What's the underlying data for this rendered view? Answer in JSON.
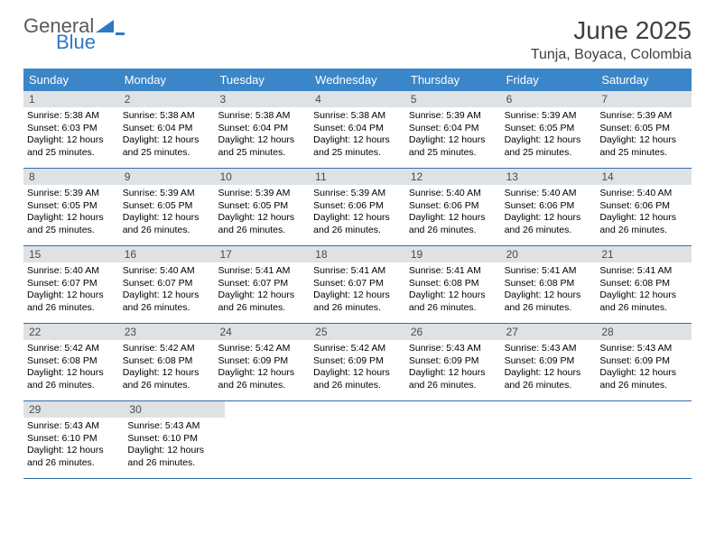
{
  "logo": {
    "text_general": "General",
    "text_blue": "Blue"
  },
  "header": {
    "title": "June 2025",
    "location": "Tunja, Boyaca, Colombia"
  },
  "weekdays": [
    "Sunday",
    "Monday",
    "Tuesday",
    "Wednesday",
    "Thursday",
    "Friday",
    "Saturday"
  ],
  "colors": {
    "header_bg": "#3b86c8",
    "header_text": "#ffffff",
    "daynum_bg": "#dfe2e5",
    "rule": "#2f6da8",
    "logo_gray": "#5a5a5a",
    "logo_blue": "#2f78c4"
  },
  "weeks": [
    [
      {
        "daynum": "1",
        "sunrise": "Sunrise: 5:38 AM",
        "sunset": "Sunset: 6:03 PM",
        "daylight1": "Daylight: 12 hours",
        "daylight2": "and 25 minutes."
      },
      {
        "daynum": "2",
        "sunrise": "Sunrise: 5:38 AM",
        "sunset": "Sunset: 6:04 PM",
        "daylight1": "Daylight: 12 hours",
        "daylight2": "and 25 minutes."
      },
      {
        "daynum": "3",
        "sunrise": "Sunrise: 5:38 AM",
        "sunset": "Sunset: 6:04 PM",
        "daylight1": "Daylight: 12 hours",
        "daylight2": "and 25 minutes."
      },
      {
        "daynum": "4",
        "sunrise": "Sunrise: 5:38 AM",
        "sunset": "Sunset: 6:04 PM",
        "daylight1": "Daylight: 12 hours",
        "daylight2": "and 25 minutes."
      },
      {
        "daynum": "5",
        "sunrise": "Sunrise: 5:39 AM",
        "sunset": "Sunset: 6:04 PM",
        "daylight1": "Daylight: 12 hours",
        "daylight2": "and 25 minutes."
      },
      {
        "daynum": "6",
        "sunrise": "Sunrise: 5:39 AM",
        "sunset": "Sunset: 6:05 PM",
        "daylight1": "Daylight: 12 hours",
        "daylight2": "and 25 minutes."
      },
      {
        "daynum": "7",
        "sunrise": "Sunrise: 5:39 AM",
        "sunset": "Sunset: 6:05 PM",
        "daylight1": "Daylight: 12 hours",
        "daylight2": "and 25 minutes."
      }
    ],
    [
      {
        "daynum": "8",
        "sunrise": "Sunrise: 5:39 AM",
        "sunset": "Sunset: 6:05 PM",
        "daylight1": "Daylight: 12 hours",
        "daylight2": "and 25 minutes."
      },
      {
        "daynum": "9",
        "sunrise": "Sunrise: 5:39 AM",
        "sunset": "Sunset: 6:05 PM",
        "daylight1": "Daylight: 12 hours",
        "daylight2": "and 26 minutes."
      },
      {
        "daynum": "10",
        "sunrise": "Sunrise: 5:39 AM",
        "sunset": "Sunset: 6:05 PM",
        "daylight1": "Daylight: 12 hours",
        "daylight2": "and 26 minutes."
      },
      {
        "daynum": "11",
        "sunrise": "Sunrise: 5:39 AM",
        "sunset": "Sunset: 6:06 PM",
        "daylight1": "Daylight: 12 hours",
        "daylight2": "and 26 minutes."
      },
      {
        "daynum": "12",
        "sunrise": "Sunrise: 5:40 AM",
        "sunset": "Sunset: 6:06 PM",
        "daylight1": "Daylight: 12 hours",
        "daylight2": "and 26 minutes."
      },
      {
        "daynum": "13",
        "sunrise": "Sunrise: 5:40 AM",
        "sunset": "Sunset: 6:06 PM",
        "daylight1": "Daylight: 12 hours",
        "daylight2": "and 26 minutes."
      },
      {
        "daynum": "14",
        "sunrise": "Sunrise: 5:40 AM",
        "sunset": "Sunset: 6:06 PM",
        "daylight1": "Daylight: 12 hours",
        "daylight2": "and 26 minutes."
      }
    ],
    [
      {
        "daynum": "15",
        "sunrise": "Sunrise: 5:40 AM",
        "sunset": "Sunset: 6:07 PM",
        "daylight1": "Daylight: 12 hours",
        "daylight2": "and 26 minutes."
      },
      {
        "daynum": "16",
        "sunrise": "Sunrise: 5:40 AM",
        "sunset": "Sunset: 6:07 PM",
        "daylight1": "Daylight: 12 hours",
        "daylight2": "and 26 minutes."
      },
      {
        "daynum": "17",
        "sunrise": "Sunrise: 5:41 AM",
        "sunset": "Sunset: 6:07 PM",
        "daylight1": "Daylight: 12 hours",
        "daylight2": "and 26 minutes."
      },
      {
        "daynum": "18",
        "sunrise": "Sunrise: 5:41 AM",
        "sunset": "Sunset: 6:07 PM",
        "daylight1": "Daylight: 12 hours",
        "daylight2": "and 26 minutes."
      },
      {
        "daynum": "19",
        "sunrise": "Sunrise: 5:41 AM",
        "sunset": "Sunset: 6:08 PM",
        "daylight1": "Daylight: 12 hours",
        "daylight2": "and 26 minutes."
      },
      {
        "daynum": "20",
        "sunrise": "Sunrise: 5:41 AM",
        "sunset": "Sunset: 6:08 PM",
        "daylight1": "Daylight: 12 hours",
        "daylight2": "and 26 minutes."
      },
      {
        "daynum": "21",
        "sunrise": "Sunrise: 5:41 AM",
        "sunset": "Sunset: 6:08 PM",
        "daylight1": "Daylight: 12 hours",
        "daylight2": "and 26 minutes."
      }
    ],
    [
      {
        "daynum": "22",
        "sunrise": "Sunrise: 5:42 AM",
        "sunset": "Sunset: 6:08 PM",
        "daylight1": "Daylight: 12 hours",
        "daylight2": "and 26 minutes."
      },
      {
        "daynum": "23",
        "sunrise": "Sunrise: 5:42 AM",
        "sunset": "Sunset: 6:08 PM",
        "daylight1": "Daylight: 12 hours",
        "daylight2": "and 26 minutes."
      },
      {
        "daynum": "24",
        "sunrise": "Sunrise: 5:42 AM",
        "sunset": "Sunset: 6:09 PM",
        "daylight1": "Daylight: 12 hours",
        "daylight2": "and 26 minutes."
      },
      {
        "daynum": "25",
        "sunrise": "Sunrise: 5:42 AM",
        "sunset": "Sunset: 6:09 PM",
        "daylight1": "Daylight: 12 hours",
        "daylight2": "and 26 minutes."
      },
      {
        "daynum": "26",
        "sunrise": "Sunrise: 5:43 AM",
        "sunset": "Sunset: 6:09 PM",
        "daylight1": "Daylight: 12 hours",
        "daylight2": "and 26 minutes."
      },
      {
        "daynum": "27",
        "sunrise": "Sunrise: 5:43 AM",
        "sunset": "Sunset: 6:09 PM",
        "daylight1": "Daylight: 12 hours",
        "daylight2": "and 26 minutes."
      },
      {
        "daynum": "28",
        "sunrise": "Sunrise: 5:43 AM",
        "sunset": "Sunset: 6:09 PM",
        "daylight1": "Daylight: 12 hours",
        "daylight2": "and 26 minutes."
      }
    ],
    [
      {
        "daynum": "29",
        "sunrise": "Sunrise: 5:43 AM",
        "sunset": "Sunset: 6:10 PM",
        "daylight1": "Daylight: 12 hours",
        "daylight2": "and 26 minutes."
      },
      {
        "daynum": "30",
        "sunrise": "Sunrise: 5:43 AM",
        "sunset": "Sunset: 6:10 PM",
        "daylight1": "Daylight: 12 hours",
        "daylight2": "and 26 minutes."
      },
      null,
      null,
      null,
      null,
      null
    ]
  ]
}
